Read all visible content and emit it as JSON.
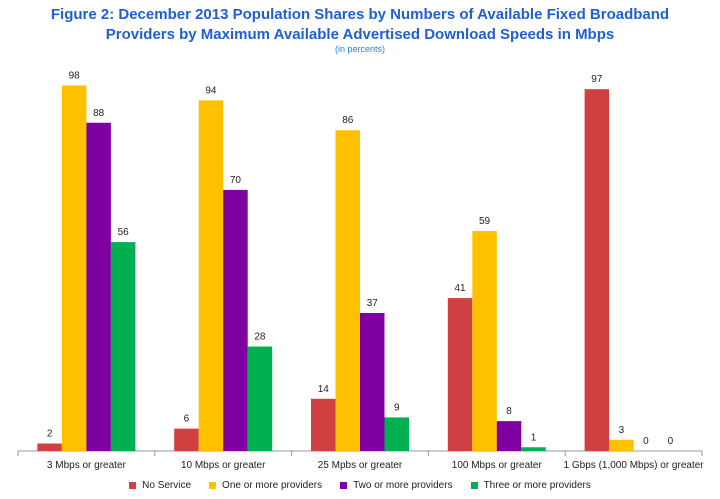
{
  "chart_data": {
    "type": "bar",
    "title_line1": "Figure 2:  December 2013 Population Shares by Numbers of Available Fixed Broadband",
    "title_line2": "Providers by Maximum Available Advertised Download Speeds in Mbps",
    "subtitle": "(in percents)",
    "categories": [
      "3 Mbps or greater",
      "10 Mbps or greater",
      "25 Mpbs or greater",
      "100 Mbps or greater",
      "1 Gbps (1,000 Mbps) or greater"
    ],
    "series": [
      {
        "name": "No Service",
        "color": "#d04040",
        "values": [
          2,
          6,
          14,
          41,
          97
        ]
      },
      {
        "name": "One or more providers",
        "color": "#ffc000",
        "values": [
          98,
          94,
          86,
          59,
          3
        ]
      },
      {
        "name": "Two or more providers",
        "color": "#7f00a0",
        "values": [
          88,
          70,
          37,
          8,
          0
        ]
      },
      {
        "name": "Three or more providers",
        "color": "#00b050",
        "values": [
          56,
          28,
          9,
          1,
          0
        ]
      }
    ],
    "data_labels": [
      [
        "2",
        "98",
        "88",
        "56"
      ],
      [
        "6",
        "94",
        "70",
        "28"
      ],
      [
        "14",
        "86",
        "37",
        "9"
      ],
      [
        "41",
        "59",
        "8",
        "1"
      ],
      [
        "97",
        "3",
        "0",
        "0"
      ]
    ],
    "ylim": [
      0,
      100
    ],
    "grid": false,
    "legend_position": "bottom"
  }
}
